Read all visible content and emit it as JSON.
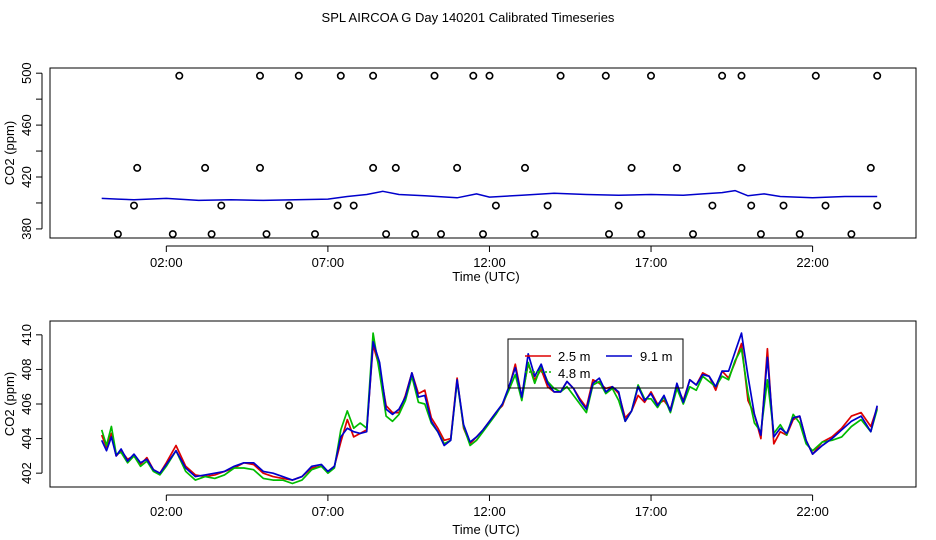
{
  "title": "SPL AIRCOA G  Day 140201  Calibrated Timeseries",
  "colors": {
    "s25": "#dd0000",
    "s48": "#00bb00",
    "s91": "#0000cc",
    "axis": "#000000"
  },
  "chart_data": [
    {
      "type": "line+scatter",
      "ylabel": "CO2 (ppm)",
      "xlabel": "Time (UTC)",
      "xlim": [
        -1.6,
        25.2
      ],
      "ylim": [
        373,
        504
      ],
      "x_ticks": [
        2,
        7,
        12,
        17,
        22
      ],
      "x_tick_labels": [
        "02:00",
        "07:00",
        "12:00",
        "17:00",
        "22:00"
      ],
      "y_ticks": [
        380,
        400,
        420,
        440,
        460,
        480,
        500
      ],
      "y_tick_labels": [
        "380",
        "",
        "420",
        "",
        "460",
        "",
        "500"
      ],
      "line": {
        "name": "CO2 timeseries",
        "x": [
          0.0,
          0.5,
          1.0,
          2.0,
          3.0,
          4.0,
          5.0,
          6.0,
          7.0,
          7.6,
          8.2,
          8.7,
          9.2,
          10.0,
          11.0,
          11.6,
          12.0,
          13.0,
          14.0,
          15.0,
          16.0,
          17.0,
          18.0,
          18.6,
          19.2,
          19.6,
          20.0,
          20.5,
          21.0,
          22.0,
          23.0,
          24.0
        ],
        "y": [
          403.5,
          403.0,
          402.5,
          403.5,
          402.0,
          402.5,
          402.0,
          402.5,
          403.0,
          405.0,
          406.5,
          409.0,
          406.5,
          405.5,
          404.0,
          407.0,
          404.5,
          406.0,
          407.5,
          406.5,
          406.0,
          406.5,
          406.0,
          407.0,
          408.0,
          409.5,
          405.5,
          407.0,
          405.0,
          404.0,
          405.0,
          405.0
        ]
      },
      "calibration_points": {
        "name": "calibration / reference measurements",
        "x": [
          0.5,
          2.2,
          3.4,
          5.1,
          6.6,
          8.8,
          9.7,
          10.5,
          11.8,
          13.4,
          15.7,
          16.7,
          18.3,
          20.4,
          21.6,
          23.2,
          1.0,
          3.7,
          5.8,
          7.3,
          7.8,
          12.2,
          13.8,
          16.0,
          18.9,
          20.1,
          21.1,
          22.4,
          24.0,
          1.1,
          3.2,
          4.9,
          8.4,
          9.1,
          11.0,
          13.1,
          16.4,
          17.8,
          19.8,
          23.8,
          2.4,
          4.9,
          6.1,
          7.4,
          8.4,
          10.3,
          11.5,
          12.0,
          14.2,
          15.6,
          17.0,
          19.2,
          19.8,
          22.1,
          24.0
        ],
        "y": [
          376,
          376,
          376,
          376,
          376,
          376,
          376,
          376,
          376,
          376,
          376,
          376,
          376,
          376,
          376,
          376,
          398,
          398,
          398,
          398,
          398,
          398,
          398,
          398,
          398,
          398,
          398,
          398,
          398,
          427,
          427,
          427,
          427,
          427,
          427,
          427,
          427,
          427,
          427,
          427,
          498,
          498,
          498,
          498,
          498,
          498,
          498,
          498,
          498,
          498,
          498,
          498,
          498,
          498,
          498
        ]
      }
    },
    {
      "type": "line",
      "ylabel": "CO2 (ppm)",
      "xlabel": "Time (UTC)",
      "xlim": [
        -1.6,
        25.2
      ],
      "ylim": [
        401.2,
        410.8
      ],
      "x_ticks": [
        2,
        7,
        12,
        17,
        22
      ],
      "x_tick_labels": [
        "02:00",
        "07:00",
        "12:00",
        "17:00",
        "22:00"
      ],
      "y_ticks": [
        402,
        404,
        406,
        408,
        410
      ],
      "y_tick_labels": [
        "402",
        "404",
        "406",
        "408",
        "410"
      ],
      "legend": {
        "position": "top-center",
        "entries": [
          "2.5 m",
          "9.1 m",
          "4.8 m"
        ]
      },
      "series": [
        {
          "name": "2.5 m",
          "color": "#dd0000",
          "x": [
            0.0,
            0.15,
            0.3,
            0.45,
            0.6,
            0.8,
            1.0,
            1.2,
            1.4,
            1.6,
            1.8,
            2.0,
            2.3,
            2.6,
            2.9,
            3.2,
            3.5,
            3.8,
            4.1,
            4.4,
            4.7,
            5.0,
            5.3,
            5.6,
            5.9,
            6.2,
            6.5,
            6.8,
            7.0,
            7.2,
            7.4,
            7.6,
            7.8,
            8.0,
            8.2,
            8.4,
            8.6,
            8.8,
            9.0,
            9.2,
            9.4,
            9.6,
            9.8,
            10.0,
            10.2,
            10.4,
            10.6,
            10.8,
            11.0,
            11.2,
            11.4,
            11.6,
            11.8,
            12.0,
            12.2,
            12.4,
            12.6,
            12.8,
            13.0,
            13.2,
            13.4,
            13.6,
            13.8,
            14.0,
            14.2,
            14.4,
            14.6,
            14.8,
            15.0,
            15.2,
            15.4,
            15.6,
            15.8,
            16.0,
            16.2,
            16.4,
            16.6,
            16.8,
            17.0,
            17.2,
            17.4,
            17.6,
            17.8,
            18.0,
            18.2,
            18.4,
            18.6,
            18.8,
            19.0,
            19.2,
            19.4,
            19.6,
            19.8,
            20.0,
            20.2,
            20.4,
            20.6,
            20.8,
            21.0,
            21.2,
            21.4,
            21.6,
            21.8,
            22.0,
            22.3,
            22.6,
            22.9,
            23.2,
            23.5,
            23.8,
            24.0
          ],
          "y": [
            404.2,
            403.5,
            404.3,
            403.0,
            403.3,
            402.8,
            403.0,
            402.5,
            402.9,
            402.2,
            402.0,
            402.6,
            403.6,
            402.4,
            401.9,
            401.8,
            401.9,
            402.1,
            402.3,
            402.6,
            402.5,
            402.0,
            401.8,
            401.7,
            401.6,
            401.8,
            402.3,
            402.4,
            402.1,
            402.4,
            403.8,
            405.1,
            404.1,
            404.3,
            404.5,
            409.4,
            408.1,
            405.9,
            405.5,
            405.5,
            406.5,
            407.8,
            406.6,
            406.8,
            405.2,
            404.6,
            403.9,
            404.0,
            407.5,
            404.6,
            403.7,
            404.1,
            404.5,
            405.0,
            405.5,
            405.9,
            406.9,
            408.3,
            406.4,
            408.3,
            407.4,
            408.0,
            407.0,
            406.7,
            406.7,
            407.3,
            406.9,
            406.3,
            405.8,
            407.4,
            407.2,
            406.9,
            407.0,
            406.6,
            405.2,
            405.6,
            406.5,
            406.1,
            406.7,
            406.0,
            406.2,
            405.7,
            407.0,
            406.2,
            407.4,
            407.1,
            407.8,
            407.6,
            406.8,
            407.9,
            407.5,
            408.4,
            409.5,
            406.2,
            405.4,
            404.0,
            409.2,
            403.7,
            404.4,
            404.2,
            405.1,
            405.3,
            403.9,
            403.1,
            403.8,
            404.1,
            404.6,
            405.3,
            405.5,
            404.7,
            405.8
          ]
        },
        {
          "name": "4.8 m",
          "color": "#00bb00",
          "x": [
            0.0,
            0.15,
            0.3,
            0.45,
            0.6,
            0.8,
            1.0,
            1.2,
            1.4,
            1.6,
            1.8,
            2.0,
            2.3,
            2.6,
            2.9,
            3.2,
            3.5,
            3.8,
            4.1,
            4.4,
            4.7,
            5.0,
            5.3,
            5.6,
            5.9,
            6.2,
            6.5,
            6.8,
            7.0,
            7.2,
            7.4,
            7.6,
            7.8,
            8.0,
            8.2,
            8.4,
            8.6,
            8.8,
            9.0,
            9.2,
            9.4,
            9.6,
            9.8,
            10.0,
            10.2,
            10.4,
            10.6,
            10.8,
            11.0,
            11.2,
            11.4,
            11.6,
            11.8,
            12.0,
            12.2,
            12.4,
            12.6,
            12.8,
            13.0,
            13.2,
            13.4,
            13.6,
            13.8,
            14.0,
            14.2,
            14.4,
            14.6,
            14.8,
            15.0,
            15.2,
            15.4,
            15.6,
            15.8,
            16.0,
            16.2,
            16.4,
            16.6,
            16.8,
            17.0,
            17.2,
            17.4,
            17.6,
            17.8,
            18.0,
            18.2,
            18.4,
            18.6,
            18.8,
            19.0,
            19.2,
            19.4,
            19.6,
            19.8,
            20.0,
            20.2,
            20.4,
            20.6,
            20.8,
            21.0,
            21.2,
            21.4,
            21.6,
            21.8,
            22.0,
            22.3,
            22.6,
            22.9,
            23.2,
            23.5,
            23.8,
            24.0
          ],
          "y": [
            404.5,
            403.6,
            404.7,
            403.1,
            403.2,
            402.6,
            403.0,
            402.4,
            402.7,
            402.1,
            401.9,
            402.4,
            403.3,
            402.1,
            401.6,
            401.8,
            401.7,
            401.9,
            402.3,
            402.3,
            402.2,
            401.7,
            401.6,
            401.6,
            401.4,
            401.6,
            402.2,
            402.4,
            402.0,
            402.3,
            404.5,
            405.6,
            404.6,
            404.9,
            404.6,
            410.1,
            407.8,
            405.3,
            405.0,
            405.4,
            406.2,
            407.6,
            406.1,
            406.0,
            404.9,
            404.4,
            403.7,
            403.9,
            407.3,
            404.7,
            403.6,
            403.9,
            404.4,
            404.9,
            405.4,
            406.0,
            406.8,
            407.7,
            406.2,
            408.4,
            407.2,
            408.2,
            407.3,
            406.9,
            406.7,
            407.0,
            406.5,
            406.0,
            405.5,
            407.1,
            407.3,
            406.6,
            406.9,
            406.2,
            405.0,
            405.6,
            407.1,
            406.3,
            406.3,
            405.8,
            406.4,
            405.5,
            406.9,
            406.0,
            407.0,
            406.8,
            407.6,
            407.3,
            407.0,
            407.6,
            407.4,
            408.5,
            409.2,
            406.6,
            404.9,
            404.4,
            407.4,
            404.3,
            404.8,
            404.2,
            405.4,
            404.9,
            403.7,
            403.3,
            403.8,
            403.9,
            404.1,
            404.7,
            405.1,
            404.4,
            405.7
          ]
        },
        {
          "name": "9.1 m",
          "color": "#0000cc",
          "x": [
            0.0,
            0.15,
            0.3,
            0.45,
            0.6,
            0.8,
            1.0,
            1.2,
            1.4,
            1.6,
            1.8,
            2.0,
            2.3,
            2.6,
            2.9,
            3.2,
            3.5,
            3.8,
            4.1,
            4.4,
            4.7,
            5.0,
            5.3,
            5.6,
            5.9,
            6.2,
            6.5,
            6.8,
            7.0,
            7.2,
            7.4,
            7.6,
            7.8,
            8.0,
            8.2,
            8.4,
            8.6,
            8.8,
            9.0,
            9.2,
            9.4,
            9.6,
            9.8,
            10.0,
            10.2,
            10.4,
            10.6,
            10.8,
            11.0,
            11.2,
            11.4,
            11.6,
            11.8,
            12.0,
            12.2,
            12.4,
            12.6,
            12.8,
            13.0,
            13.2,
            13.4,
            13.6,
            13.8,
            14.0,
            14.2,
            14.4,
            14.6,
            14.8,
            15.0,
            15.2,
            15.4,
            15.6,
            15.8,
            16.0,
            16.2,
            16.4,
            16.6,
            16.8,
            17.0,
            17.2,
            17.4,
            17.6,
            17.8,
            18.0,
            18.2,
            18.4,
            18.6,
            18.8,
            19.0,
            19.2,
            19.4,
            19.6,
            19.8,
            20.0,
            20.2,
            20.4,
            20.6,
            20.8,
            21.0,
            21.2,
            21.4,
            21.6,
            21.8,
            22.0,
            22.3,
            22.6,
            22.9,
            23.2,
            23.5,
            23.8,
            24.0
          ],
          "y": [
            403.9,
            403.3,
            404.1,
            403.0,
            403.4,
            402.7,
            403.1,
            402.6,
            402.8,
            402.2,
            402.0,
            402.5,
            403.3,
            402.3,
            401.8,
            401.9,
            402.0,
            402.1,
            402.4,
            402.6,
            402.6,
            402.1,
            402.0,
            401.8,
            401.6,
            401.8,
            402.4,
            402.5,
            402.1,
            402.4,
            404.1,
            404.6,
            404.4,
            404.3,
            404.4,
            409.6,
            408.4,
            405.7,
            405.4,
            405.7,
            406.4,
            407.8,
            406.4,
            406.5,
            405.0,
            404.4,
            403.6,
            403.9,
            407.4,
            404.8,
            403.8,
            404.1,
            404.5,
            405.0,
            405.5,
            406.0,
            407.0,
            408.1,
            406.4,
            408.9,
            407.6,
            408.3,
            407.2,
            406.7,
            406.7,
            407.3,
            406.9,
            406.2,
            405.7,
            407.2,
            407.5,
            406.7,
            407.0,
            406.7,
            405.0,
            405.6,
            407.0,
            406.2,
            406.6,
            405.9,
            406.5,
            405.6,
            407.2,
            406.1,
            407.4,
            407.1,
            407.7,
            407.6,
            407.0,
            407.9,
            407.9,
            409.0,
            410.1,
            407.6,
            405.4,
            404.2,
            408.7,
            404.1,
            404.6,
            404.3,
            405.2,
            405.3,
            403.9,
            403.1,
            403.6,
            404.0,
            404.5,
            405.0,
            405.3,
            404.4,
            405.9
          ]
        }
      ]
    }
  ]
}
